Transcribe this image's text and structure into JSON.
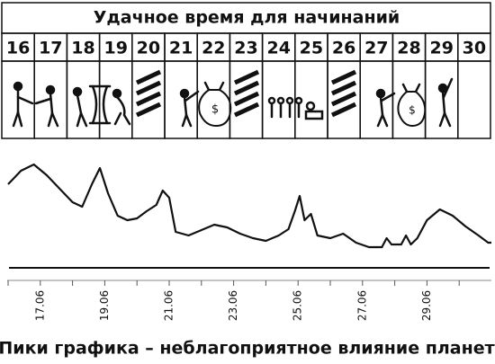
{
  "header": {
    "title": "Удачное время для начинаний"
  },
  "days": [
    16,
    17,
    18,
    19,
    20,
    21,
    22,
    23,
    24,
    25,
    26,
    27,
    28,
    29,
    30
  ],
  "chart_data": {
    "type": "line",
    "x": [
      16.0,
      16.4,
      16.8,
      17.2,
      17.6,
      18.0,
      18.3,
      18.6,
      18.85,
      19.1,
      19.4,
      19.7,
      20.0,
      20.3,
      20.6,
      20.8,
      21.0,
      21.2,
      21.6,
      22.0,
      22.4,
      22.8,
      23.2,
      23.6,
      24.0,
      24.4,
      24.7,
      24.9,
      25.05,
      25.2,
      25.4,
      25.6,
      26.0,
      26.4,
      26.8,
      27.2,
      27.6,
      27.75,
      27.9,
      28.2,
      28.35,
      28.5,
      28.7,
      29.0,
      29.4,
      29.8,
      30.2,
      30.6,
      30.9,
      31.0
    ],
    "values": [
      95,
      110,
      117,
      105,
      90,
      75,
      70,
      95,
      113,
      85,
      60,
      55,
      57,
      65,
      72,
      88,
      80,
      42,
      38,
      44,
      50,
      47,
      40,
      35,
      32,
      38,
      45,
      65,
      82,
      55,
      62,
      38,
      35,
      40,
      30,
      25,
      25,
      35,
      28,
      28,
      38,
      28,
      35,
      55,
      67,
      60,
      48,
      38,
      30,
      30
    ],
    "color": "#111111",
    "xlim": [
      16,
      31
    ],
    "ylim": [
      0,
      120
    ],
    "xticks": [
      {
        "value": 17,
        "label": "17.06"
      },
      {
        "value": 19,
        "label": "19.06"
      },
      {
        "value": 21,
        "label": "21.06"
      },
      {
        "value": 23,
        "label": "23.06"
      },
      {
        "value": 25,
        "label": "25.06"
      },
      {
        "value": 27,
        "label": "27.06"
      },
      {
        "value": 29,
        "label": "29.06"
      }
    ],
    "minor_xticks": [
      16,
      18,
      20,
      22,
      24,
      26,
      28,
      30
    ],
    "note": "Пики графика – неблагоприятное влияние планет"
  }
}
